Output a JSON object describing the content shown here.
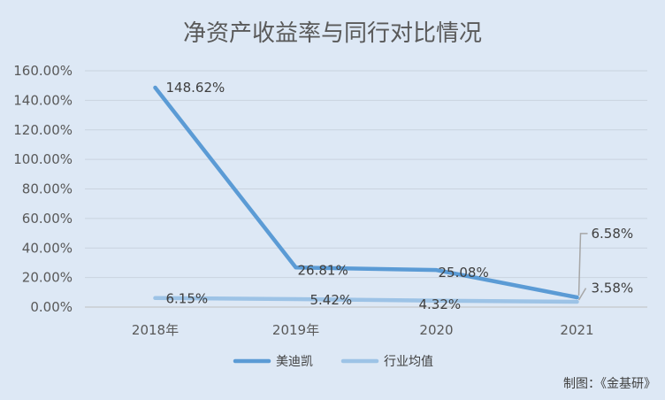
{
  "chart_data": {
    "type": "line",
    "title": "净资产收益率与同行对比情况",
    "categories": [
      "2018年",
      "2019年",
      "2020",
      "2021"
    ],
    "series": [
      {
        "name": "美迪凯",
        "values": [
          148.62,
          26.81,
          25.08,
          6.58
        ],
        "labels": [
          "148.62%",
          "26.81%",
          "25.08%",
          "6.58%"
        ],
        "color": "#5b9bd5"
      },
      {
        "name": "行业均值",
        "values": [
          6.15,
          5.42,
          4.32,
          3.58
        ],
        "labels": [
          "6.15%",
          "5.42%",
          "4.32%",
          "3.58%"
        ],
        "color": "#9dc3e6"
      }
    ],
    "ylim": [
      0,
      160
    ],
    "yticks": [
      "0.00%",
      "20.00%",
      "40.00%",
      "60.00%",
      "80.00%",
      "100.00%",
      "120.00%",
      "140.00%",
      "160.00%"
    ],
    "grid": true,
    "legend": "bottom",
    "xlabel": "",
    "ylabel": ""
  },
  "credit": "制图：《金基研》"
}
